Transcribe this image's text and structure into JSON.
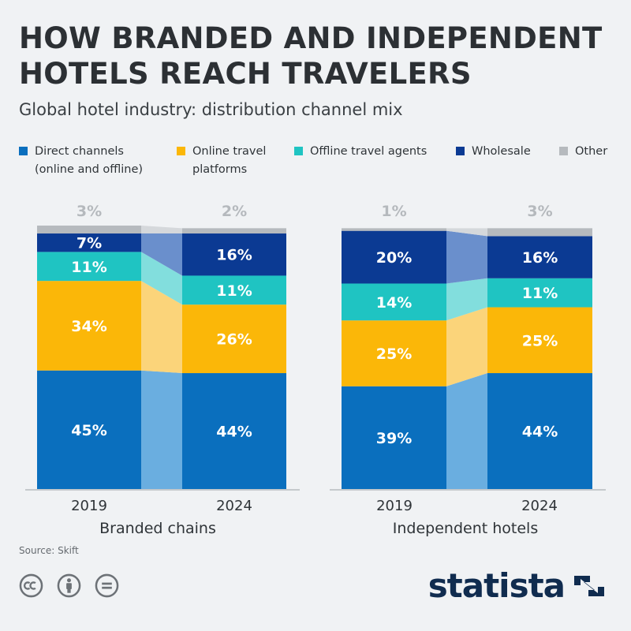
{
  "header": {
    "title": "HOW BRANDED AND INDEPENDENT HOTELS REACH TRAVELERS",
    "subtitle": "Global hotel industry: distribution channel mix"
  },
  "legend": [
    {
      "label": "Direct channels\n(online and offline)",
      "color": "#0a6fbe"
    },
    {
      "label": "Online travel\nplatforms",
      "color": "#fbb708"
    },
    {
      "label": "Offline travel agents",
      "color": "#1fc4c2"
    },
    {
      "label": "Wholesale",
      "color": "#0b3a93"
    },
    {
      "label": "Other",
      "color": "#b6babe"
    }
  ],
  "chart_data": {
    "type": "bar",
    "stacked": true,
    "series_order": [
      "Direct channels (online and offline)",
      "Online travel platforms",
      "Offline travel agents",
      "Wholesale",
      "Other"
    ],
    "groups": [
      {
        "name": "Branded chains",
        "categories": [
          "2019",
          "2024"
        ],
        "series": [
          {
            "name": "Direct channels (online and offline)",
            "values": [
              45,
              44
            ]
          },
          {
            "name": "Online travel platforms",
            "values": [
              34,
              26
            ]
          },
          {
            "name": "Offline travel agents",
            "values": [
              11,
              11
            ]
          },
          {
            "name": "Wholesale",
            "values": [
              7,
              16
            ]
          },
          {
            "name": "Other",
            "values": [
              3,
              2
            ]
          }
        ],
        "labels": [
          [
            "45%",
            "34%",
            "11%",
            "7%",
            "3%"
          ],
          [
            "44%",
            "26%",
            "11%",
            "16%",
            "2%"
          ]
        ]
      },
      {
        "name": "Independent hotels",
        "categories": [
          "2019",
          "2024"
        ],
        "series": [
          {
            "name": "Direct channels (online and offline)",
            "values": [
              39,
              44
            ]
          },
          {
            "name": "Online travel platforms",
            "values": [
              25,
              25
            ]
          },
          {
            "name": "Offline travel agents",
            "values": [
              14,
              11
            ]
          },
          {
            "name": "Wholesale",
            "values": [
              20,
              16
            ]
          },
          {
            "name": "Other",
            "values": [
              1,
              3
            ]
          }
        ],
        "labels": [
          [
            "39%",
            "25%",
            "14%",
            "20%",
            "1%"
          ],
          [
            "44%",
            "25%",
            "11%",
            "16%",
            "3%"
          ]
        ]
      }
    ],
    "unit": "%",
    "ylim": [
      0,
      100
    ]
  },
  "footer": {
    "source": "Source: Skift",
    "brand": "statista",
    "license_icons": [
      "cc-icon",
      "attribution-icon",
      "no-derivatives-icon"
    ]
  }
}
